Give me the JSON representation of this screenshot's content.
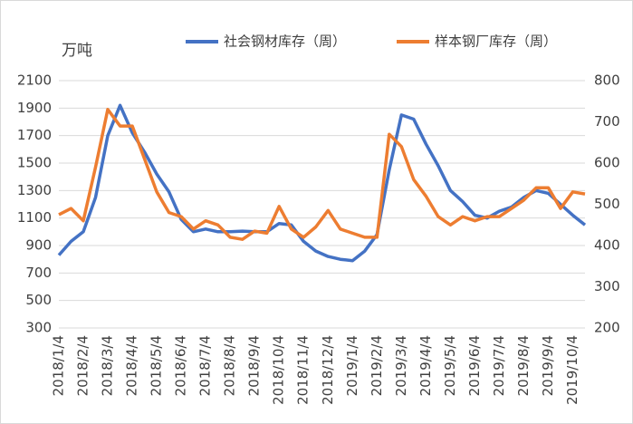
{
  "chart_data": {
    "type": "line",
    "y_label": "万吨",
    "categories": [
      "2018/1/4",
      null,
      "2018/2/4",
      null,
      "2018/3/4",
      null,
      "2018/4/4",
      null,
      "2018/5/4",
      null,
      "2018/6/4",
      null,
      "2018/7/4",
      null,
      "2018/8/4",
      null,
      "2018/9/4",
      null,
      "2018/10/4",
      null,
      "2018/11/4",
      null,
      "2018/12/4",
      null,
      "2019/1/4",
      null,
      "2019/2/4",
      null,
      "2019/3/4",
      null,
      "2019/4/4",
      null,
      "2019/5/4",
      null,
      "2019/6/4",
      null,
      "2019/7/4",
      null,
      "2019/8/4",
      null,
      "2019/9/4",
      null,
      "2019/10/4",
      null
    ],
    "series": [
      {
        "name": "社会钢材库存（周）",
        "color": "#4472c4",
        "axis": "y",
        "values": [
          830,
          930,
          1000,
          1250,
          1700,
          1920,
          1720,
          1580,
          1420,
          1290,
          1090,
          1000,
          1020,
          1000,
          1000,
          1005,
          1000,
          1000,
          1060,
          1050,
          930,
          860,
          820,
          800,
          790,
          860,
          980,
          1450,
          1850,
          1820,
          1640,
          1480,
          1300,
          1220,
          1120,
          1100,
          1150,
          1180,
          1250,
          1300,
          1280,
          1200,
          1120,
          1050
        ]
      },
      {
        "name": "样本钢厂库存（周）",
        "color": "#ed7d31",
        "axis": "y2",
        "values": [
          475,
          490,
          460,
          590,
          730,
          690,
          690,
          610,
          530,
          480,
          470,
          440,
          460,
          450,
          420,
          415,
          435,
          430,
          495,
          440,
          420,
          445,
          485,
          440,
          430,
          420,
          420,
          670,
          640,
          560,
          520,
          470,
          450,
          470,
          460,
          470,
          470,
          490,
          510,
          540,
          540,
          490,
          530,
          525
        ]
      }
    ],
    "ylim": [
      300,
      2100
    ],
    "yticks": [
      300,
      500,
      700,
      900,
      1100,
      1300,
      1500,
      1700,
      1900,
      2100
    ],
    "y2lim": [
      200,
      800
    ],
    "y2ticks": [
      200,
      300,
      400,
      500,
      600,
      700,
      800
    ],
    "grid": true,
    "legend": "top"
  }
}
